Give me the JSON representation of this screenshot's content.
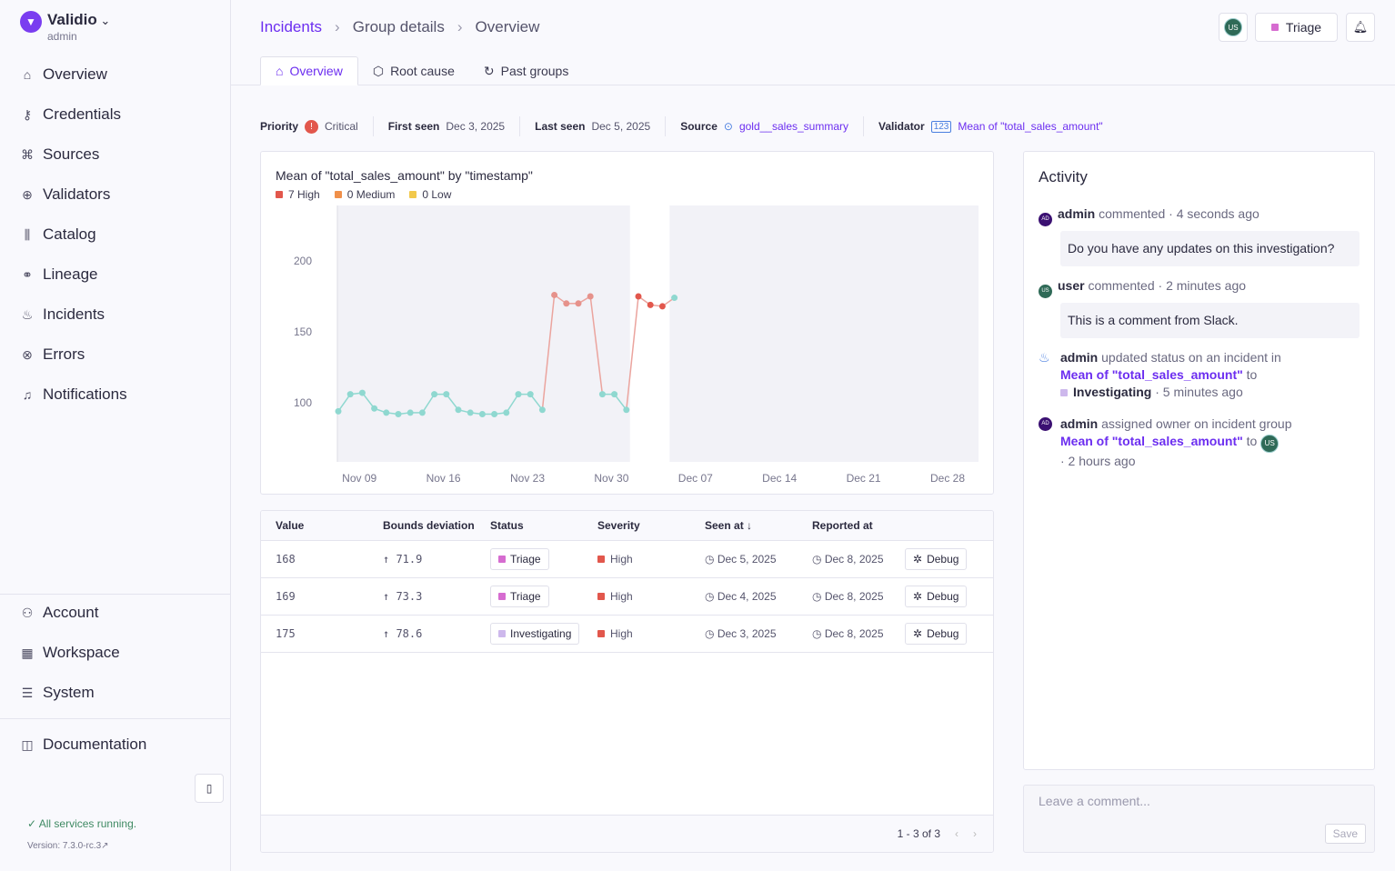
{
  "brand": {
    "name": "Validio",
    "role": "admin"
  },
  "nav": [
    {
      "label": "Overview",
      "icon": "home-icon",
      "g": "⌂"
    },
    {
      "label": "Credentials",
      "icon": "key-icon",
      "g": "⚷"
    },
    {
      "label": "Sources",
      "icon": "sources-icon",
      "g": "⌘"
    },
    {
      "label": "Validators",
      "icon": "validators-icon",
      "g": "⊕"
    },
    {
      "label": "Catalog",
      "icon": "catalog-icon",
      "g": "⫼"
    },
    {
      "label": "Lineage",
      "icon": "lineage-icon",
      "g": "⚭"
    },
    {
      "label": "Incidents",
      "icon": "flame-icon",
      "g": "♨"
    },
    {
      "label": "Errors",
      "icon": "error-icon",
      "g": "⊗"
    },
    {
      "label": "Notifications",
      "icon": "bell-icon",
      "g": "♫"
    }
  ],
  "nav_bottom": [
    {
      "label": "Account",
      "icon": "user-icon",
      "g": "⚇"
    },
    {
      "label": "Workspace",
      "icon": "building-icon",
      "g": "▦"
    },
    {
      "label": "System",
      "icon": "server-icon",
      "g": "☰"
    }
  ],
  "docs": {
    "label": "Documentation",
    "g": "◫"
  },
  "status": "All services running.",
  "version": "Version: 7.3.0-rc.3",
  "breadcrumb": [
    "Incidents",
    "Group details",
    "Overview"
  ],
  "header": {
    "avatar": "US",
    "status": "Triage",
    "status_color": "#d66cd0"
  },
  "tabs": [
    {
      "label": "Overview",
      "g": "⌂"
    },
    {
      "label": "Root cause",
      "g": "⬡"
    },
    {
      "label": "Past groups",
      "g": "↻"
    }
  ],
  "meta": {
    "priority_label": "Priority",
    "priority": "Critical",
    "first_seen_label": "First seen",
    "first_seen": "Dec 3, 2025",
    "last_seen_label": "Last seen",
    "last_seen": "Dec 5, 2025",
    "source_label": "Source",
    "source": "gold__sales_summary",
    "validator_label": "Validator",
    "validator": "Mean of \"total_sales_amount\""
  },
  "chart_data": {
    "type": "line",
    "title": "Mean of \"total_sales_amount\" by \"timestamp\"",
    "legend": [
      {
        "label": "7 High",
        "color": "#e2574c"
      },
      {
        "label": "0 Medium",
        "color": "#f0904a"
      },
      {
        "label": "0 Low",
        "color": "#f2c94c"
      }
    ],
    "ylim": [
      60,
      240
    ],
    "yticks": [
      100,
      150,
      200
    ],
    "xticks": [
      "Nov 09",
      "Nov 16",
      "Nov 23",
      "Nov 30",
      "Dec 07",
      "Dec 14",
      "Dec 21",
      "Dec 28"
    ],
    "x": [
      "Nov 08",
      "Nov 09",
      "Nov 10",
      "Nov 11",
      "Nov 12",
      "Nov 13",
      "Nov 14",
      "Nov 15",
      "Nov 16",
      "Nov 17",
      "Nov 18",
      "Nov 19",
      "Nov 20",
      "Nov 21",
      "Nov 22",
      "Nov 23",
      "Nov 24",
      "Nov 25",
      "Nov 26",
      "Nov 27",
      "Nov 28",
      "Nov 29",
      "Nov 30",
      "Dec 01",
      "Dec 02",
      "Dec 03",
      "Dec 04",
      "Dec 05",
      "Dec 06"
    ],
    "values": [
      94,
      106,
      107,
      96,
      93,
      92,
      93,
      93,
      106,
      106,
      95,
      93,
      92,
      92,
      93,
      106,
      106,
      95,
      176,
      170,
      170,
      175,
      106,
      106,
      95,
      175,
      169,
      168,
      174
    ],
    "anomaly": [
      false,
      false,
      false,
      false,
      false,
      false,
      false,
      false,
      false,
      false,
      false,
      false,
      false,
      false,
      false,
      false,
      false,
      false,
      true,
      true,
      true,
      true,
      false,
      false,
      false,
      true,
      true,
      true,
      false
    ],
    "colors": {
      "normal": "#8fd8d0",
      "anomaly": "#e2574c"
    }
  },
  "table": {
    "headers": [
      "Value",
      "Bounds deviation",
      "Status",
      "Severity",
      "Seen at ↓",
      "Reported at"
    ],
    "rows": [
      {
        "value": "168",
        "dev": "71.9",
        "status": "Triage",
        "status_color": "#d66cd0",
        "severity": "High",
        "seen": "Dec 5, 2025",
        "reported": "Dec 8, 2025",
        "action": "Debug"
      },
      {
        "value": "169",
        "dev": "73.3",
        "status": "Triage",
        "status_color": "#d66cd0",
        "severity": "High",
        "seen": "Dec 4, 2025",
        "reported": "Dec 8, 2025",
        "action": "Debug"
      },
      {
        "value": "175",
        "dev": "78.6",
        "status": "Investigating",
        "status_color": "#cdb8ec",
        "severity": "High",
        "seen": "Dec 3, 2025",
        "reported": "Dec 8, 2025",
        "action": "Debug"
      }
    ],
    "pagination": "1 - 3 of 3"
  },
  "activity": {
    "title": "Activity",
    "a1": {
      "user": "admin",
      "verb": "commented",
      "time": "· 4 seconds ago",
      "text": "Do you have any updates on this investigation?",
      "av": "AD"
    },
    "a2": {
      "user": "user",
      "verb": "commented",
      "time": "· 2 minutes ago",
      "text": "This is a comment from Slack.",
      "av": "US"
    },
    "a3": {
      "user": "admin",
      "verb": "updated status on an incident in",
      "link": "Mean of \"total_sales_amount\"",
      "to": "to",
      "status": "Investigating",
      "time": "· 5 minutes ago"
    },
    "a4": {
      "user": "admin",
      "verb": "assigned owner on incident group",
      "link": "Mean of \"total_sales_amount\"",
      "to": "to",
      "av": "AD",
      "owner": "US",
      "time": "· 2 hours ago"
    }
  },
  "comment": {
    "placeholder": "Leave a comment...",
    "save": "Save"
  }
}
